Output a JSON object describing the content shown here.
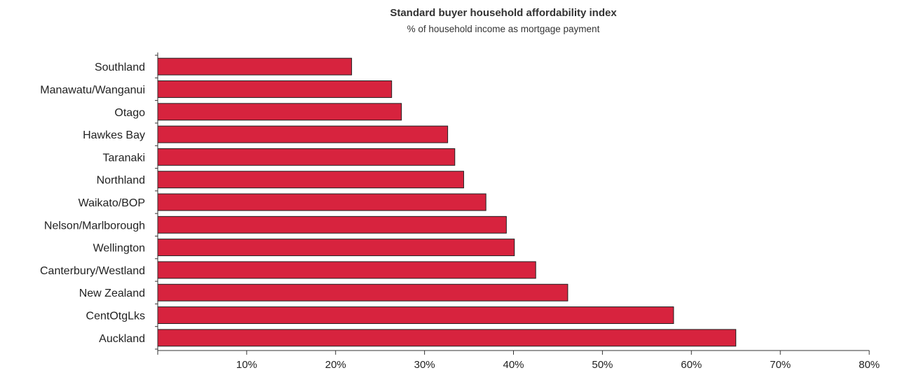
{
  "chart_data": {
    "type": "bar",
    "orientation": "horizontal",
    "title": "Standard buyer household affordability index",
    "subtitle": "% of household income as mortgage payment",
    "xlabel": "",
    "ylabel": "",
    "categories": [
      "Southland",
      "Manawatu/Wanganui",
      "Otago",
      "Hawkes Bay",
      "Taranaki",
      "Northland",
      "Waikato/BOP",
      "Nelson/Marlborough",
      "Wellington",
      "Canterbury/Westland",
      "New Zealand",
      "CentOtgLks",
      "Auckland"
    ],
    "values": [
      21.8,
      26.3,
      27.4,
      32.6,
      33.4,
      34.4,
      36.9,
      39.2,
      40.1,
      42.5,
      46.1,
      58.0,
      65.0
    ],
    "xlim": [
      0,
      80
    ],
    "x_ticks": [
      0,
      10,
      20,
      30,
      40,
      50,
      60,
      70,
      80
    ],
    "x_tick_labels": [
      "10%",
      "20%",
      "30%",
      "40%",
      "50%",
      "60%",
      "70%",
      "80%"
    ],
    "grid": false,
    "bar_color": "#d7233e",
    "bar_edge_color": "#222222"
  }
}
